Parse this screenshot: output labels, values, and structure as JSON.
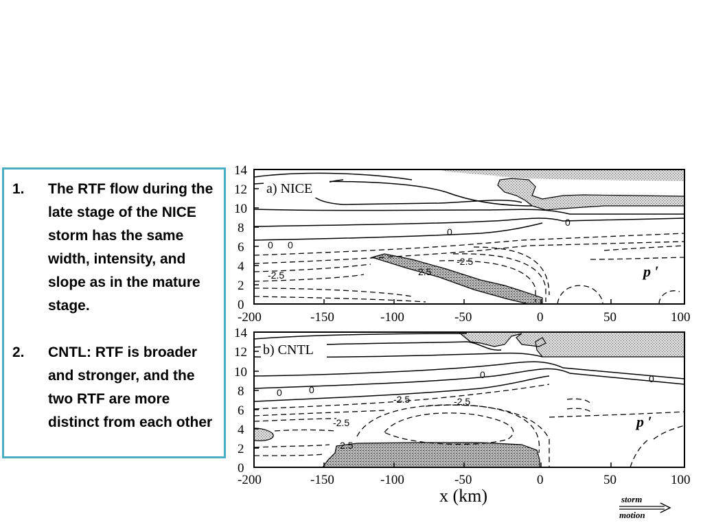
{
  "notes": [
    {
      "number": "1.",
      "text": "The RTF flow during the late stage of the NICE storm has the same width, intensity, and slope as in the mature stage."
    },
    {
      "number": "2.",
      "text": "CNTL: RTF is broader and stronger, and the two RTF are more distinct from each other"
    }
  ],
  "figure": {
    "x_label": "x  (km)",
    "x_ticks": [
      "-200",
      "-150",
      "-100",
      "-50",
      "0",
      "50",
      "100"
    ],
    "y_ticks": [
      "0",
      "2",
      "4",
      "6",
      "8",
      "10",
      "12",
      "14"
    ],
    "variable_label": "p ′",
    "arrow_label_top": "storm",
    "arrow_label_bottom": "motion",
    "panels": [
      {
        "title": "a) NICE",
        "contour_labels": [
          "0",
          "0",
          "0",
          "0",
          "-2.5",
          "-2.5",
          "2.5"
        ]
      },
      {
        "title": "b) CNTL",
        "contour_labels": [
          "0",
          "0",
          "0",
          "0",
          "-2.5",
          "-2.5",
          "-2.5",
          "2.5"
        ]
      }
    ]
  }
}
